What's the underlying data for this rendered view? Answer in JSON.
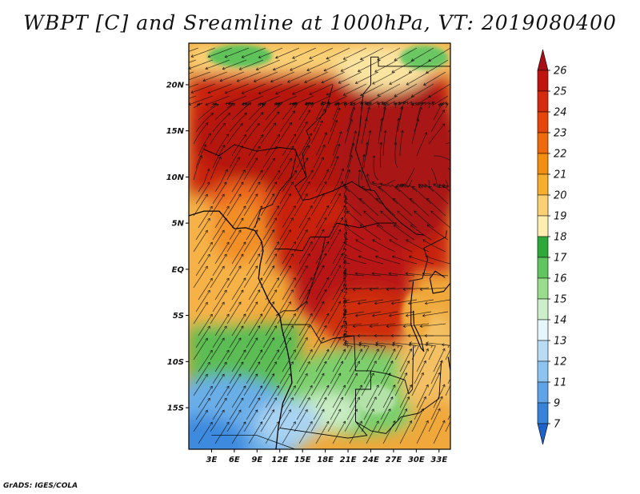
{
  "title": "WBPT [C] and Sreamline at 1000hPa, VT: 2019080400",
  "credit": "GrADS: IGES/COLA",
  "map": {
    "lat_labels": [
      "20N",
      "15N",
      "10N",
      "5N",
      "EQ",
      "5S",
      "10S",
      "15S"
    ],
    "lon_labels": [
      "3E",
      "6E",
      "9E",
      "12E",
      "15E",
      "18E",
      "21E",
      "24E",
      "27E",
      "30E",
      "33E"
    ],
    "lat_values": [
      20,
      15,
      10,
      5,
      0,
      -5,
      -10,
      -15
    ],
    "lon_values": [
      3,
      6,
      9,
      12,
      15,
      18,
      21,
      24,
      27,
      30,
      33
    ],
    "lat_range": [
      -19.5,
      24.5
    ],
    "lon_range": [
      0,
      34.5
    ]
  },
  "colorbar": {
    "labels": [
      "26",
      "25",
      "24",
      "23",
      "22",
      "21",
      "20",
      "19",
      "18",
      "17",
      "16",
      "15",
      "14",
      "13",
      "12",
      "11",
      "9",
      "7"
    ],
    "colors": [
      "#a50f15",
      "#c0150e",
      "#d62a0e",
      "#e5450a",
      "#ee6a0c",
      "#f38e10",
      "#f7ad2e",
      "#fbd074",
      "#fdeeb0",
      "#2fa83a",
      "#60c55f",
      "#98dc8c",
      "#cceec8",
      "#e6f7fb",
      "#b9dcf5",
      "#8cc3ef",
      "#5ea4e6",
      "#3683d9",
      "#1d62c8"
    ]
  }
}
